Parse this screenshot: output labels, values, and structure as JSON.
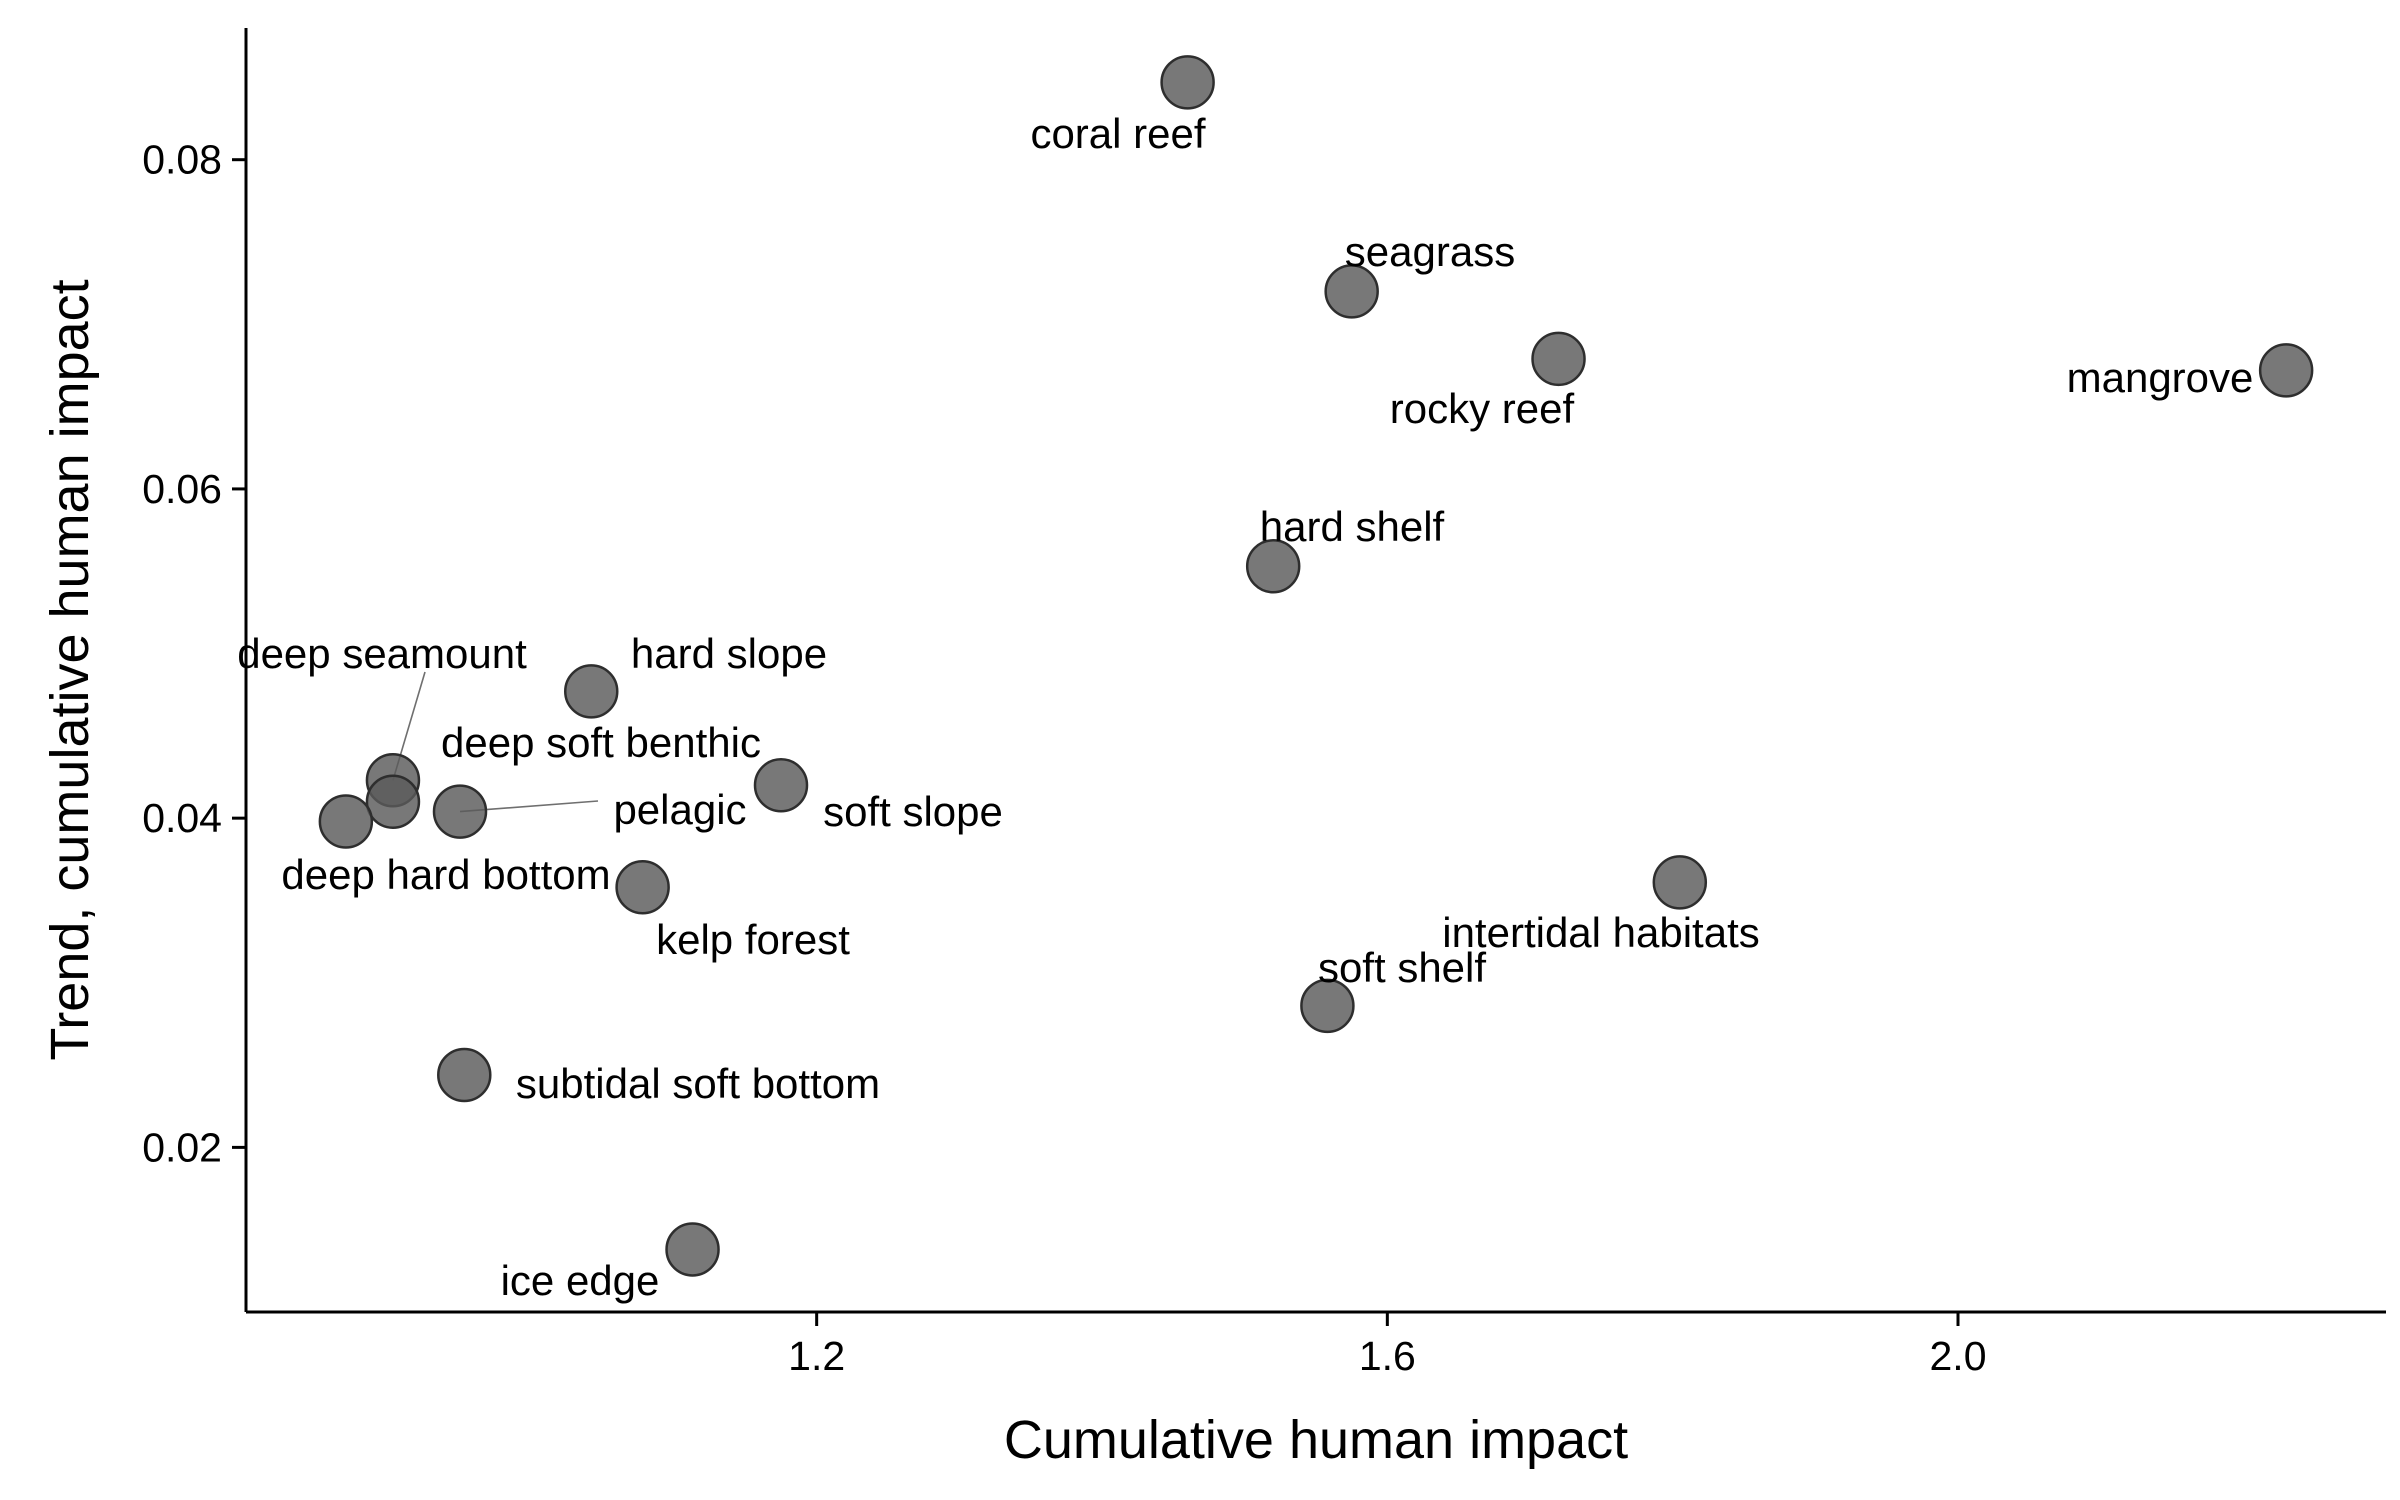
{
  "chart_data": {
    "type": "scatter",
    "title": "",
    "xlabel": "Cumulative human impact",
    "ylabel": "Trend, cumulative human impact",
    "xlim": [
      0.8,
      2.3
    ],
    "ylim": [
      0.01,
      0.088
    ],
    "x_ticks": [
      1.2,
      1.6,
      2.0
    ],
    "y_ticks": [
      0.02,
      0.04,
      0.06,
      0.08
    ],
    "x_tick_labels": [
      "1.2",
      "1.6",
      "2.0"
    ],
    "y_tick_labels": [
      "0.02",
      "0.04",
      "0.06",
      "0.08"
    ],
    "grid": false,
    "legend": "none",
    "point_color": "#5a5a5a",
    "points": [
      {
        "label": "coral reef",
        "x": 1.46,
        "y": 0.0847
      },
      {
        "label": "seagrass",
        "x": 1.575,
        "y": 0.072
      },
      {
        "label": "rocky reef",
        "x": 1.72,
        "y": 0.0679
      },
      {
        "label": "mangrove",
        "x": 2.23,
        "y": 0.0672
      },
      {
        "label": "hard shelf",
        "x": 1.52,
        "y": 0.0553
      },
      {
        "label": "hard slope",
        "x": 1.042,
        "y": 0.0477
      },
      {
        "label": "deep seamount",
        "x": 0.903,
        "y": 0.0423
      },
      {
        "label": "deep soft benthic",
        "x": 0.903,
        "y": 0.041
      },
      {
        "label": "pelagic",
        "x": 0.95,
        "y": 0.0404
      },
      {
        "label": "soft slope",
        "x": 1.175,
        "y": 0.042
      },
      {
        "label": "deep hard bottom",
        "x": 0.87,
        "y": 0.0398
      },
      {
        "label": "kelp forest",
        "x": 1.078,
        "y": 0.0358
      },
      {
        "label": "intertidal habitats",
        "x": 1.805,
        "y": 0.0361
      },
      {
        "label": "soft shelf",
        "x": 1.558,
        "y": 0.0286
      },
      {
        "label": "subtidal soft bottom",
        "x": 0.953,
        "y": 0.0244
      },
      {
        "label": "ice edge",
        "x": 1.113,
        "y": 0.0138
      }
    ]
  }
}
